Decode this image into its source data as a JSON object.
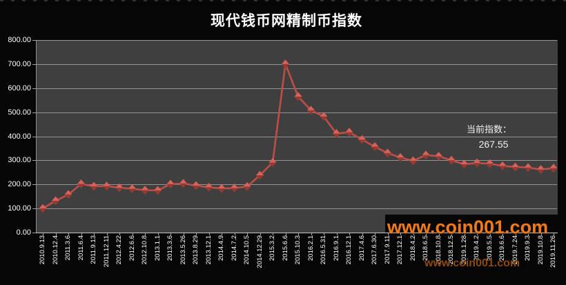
{
  "title": "现代钱币网精制币指数",
  "annotation": {
    "label": "当前指数：",
    "value": "267.55"
  },
  "watermark_large": "www.coin001.com",
  "watermark_small": "www.coin001.com",
  "colors": {
    "page_bg": "#060606",
    "plot_bg": "#3f3f3f",
    "grid": "#a3a3a3",
    "text": "#ffffff",
    "line": "#bf4e48",
    "marker_top": "#d4635c",
    "marker_bottom": "#9a3832",
    "watermark_large": "#ec7a1c",
    "watermark_small": "#8c4a10"
  },
  "chart_data": {
    "type": "line",
    "title": "现代钱币网精制币指数",
    "marker": "diamond",
    "grid": true,
    "legend_position": "none",
    "xlabel": "",
    "ylabel": "",
    "ylim": [
      0,
      800
    ],
    "ytick_step": 100,
    "ytick_labels": [
      "800.00",
      "700.00",
      "600.00",
      "500.00",
      "400.00",
      "300.00",
      "200.00",
      "100.00",
      "0.00"
    ],
    "categories": [
      "2010.9.13",
      "2010.12.4",
      "2011.3.6",
      "2011.6.4",
      "2011.9.13",
      "2011.12.11",
      "2012.4.22",
      "2012.6.6",
      "2012.10.8",
      "2013.1.1",
      "2013.3.6",
      "2013.5.26",
      "2013.8.29",
      "2013.12.1",
      "2014.4.9",
      "2014.7.2",
      "2014.10.5",
      "2014.12.29",
      "2015.3.2",
      "2015.6.6",
      "2015.10.3",
      "2016.2.1",
      "2016.5.31",
      "2016.9.1",
      "2016.12.1",
      "2017.4.6",
      "2017.6.30",
      "2017.9.11",
      "2017.12.1",
      "2018.4.2",
      "2018.6.5",
      "2018.10.8",
      "2018.12.5",
      "2019.1.28",
      "2019.4.2",
      "2019.5.5",
      "2019.6.6",
      "2019.7.24",
      "2019.9.3",
      "2019.10.8",
      "2019.11.26"
    ],
    "values": [
      100,
      132,
      158,
      202,
      192,
      193,
      186,
      182,
      176,
      175,
      201,
      204,
      195,
      188,
      183,
      185,
      191,
      238,
      291,
      700,
      565,
      508,
      482,
      411,
      417,
      386,
      357,
      330,
      312,
      298,
      322,
      317,
      300,
      284,
      289,
      286,
      277,
      272,
      270,
      262,
      267.55
    ],
    "current_value_annotation": "267.55"
  }
}
